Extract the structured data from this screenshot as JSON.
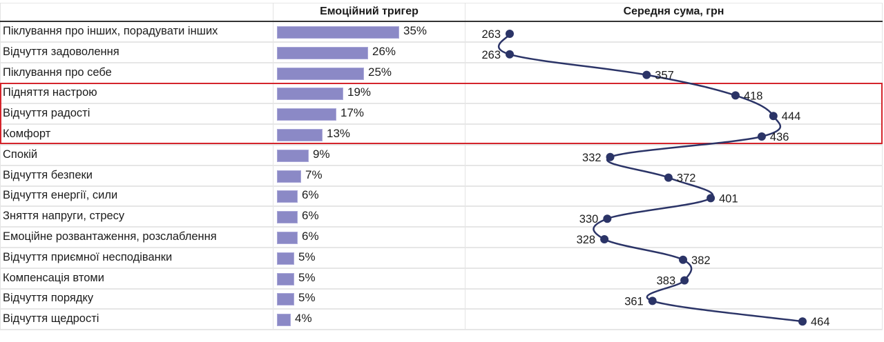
{
  "table": {
    "col_headers": [
      "",
      "Емоційний тригер",
      "Середня сума, грн"
    ],
    "rows": [
      {
        "label": "Піклування про інших, порадувати інших",
        "pct": 35,
        "pct_label": "35%",
        "avg": 263,
        "avg_label": "263"
      },
      {
        "label": "Відчуття задоволення",
        "pct": 26,
        "pct_label": "26%",
        "avg": 263,
        "avg_label": "263"
      },
      {
        "label": "Піклування про себе",
        "pct": 25,
        "pct_label": "25%",
        "avg": 357,
        "avg_label": "357"
      },
      {
        "label": "Підняття настрою",
        "pct": 19,
        "pct_label": "19%",
        "avg": 418,
        "avg_label": "418"
      },
      {
        "label": "Відчуття радості",
        "pct": 17,
        "pct_label": "17%",
        "avg": 444,
        "avg_label": "444"
      },
      {
        "label": "Комфорт",
        "pct": 13,
        "pct_label": "13%",
        "avg": 436,
        "avg_label": "436"
      },
      {
        "label": "Спокій",
        "pct": 9,
        "pct_label": "9%",
        "avg": 332,
        "avg_label": "332"
      },
      {
        "label": "Відчуття безпеки",
        "pct": 7,
        "pct_label": "7%",
        "avg": 372,
        "avg_label": "372"
      },
      {
        "label": "Відчуття енергії, сили",
        "pct": 6,
        "pct_label": "6%",
        "avg": 401,
        "avg_label": "401"
      },
      {
        "label": "Зняття напруги, стресу",
        "pct": 6,
        "pct_label": "6%",
        "avg": 330,
        "avg_label": "330"
      },
      {
        "label": "Емоційне розвантаження, розслаблення",
        "pct": 6,
        "pct_label": "6%",
        "avg": 328,
        "avg_label": "328"
      },
      {
        "label": "Відчуття приємної несподіванки",
        "pct": 5,
        "pct_label": "5%",
        "avg": 382,
        "avg_label": "382"
      },
      {
        "label": "Компенсація втоми",
        "pct": 5,
        "pct_label": "5%",
        "avg": 383,
        "avg_label": "383"
      },
      {
        "label": "Відчуття порядку",
        "pct": 5,
        "pct_label": "5%",
        "avg": 361,
        "avg_label": "361"
      },
      {
        "label": "Відчуття щедрості",
        "pct": 4,
        "pct_label": "4%",
        "avg": 464,
        "avg_label": "464"
      }
    ],
    "highlighted_rows": [
      "Підняття настрою",
      "Відчуття радості",
      "Комфорт"
    ]
  },
  "colors": {
    "bar": "#8b89c6",
    "line": "#2b3467",
    "highlight_border": "#d4242b",
    "header_rule": "#333333",
    "grid": "#e6e6e6"
  },
  "chart_data": [
    {
      "type": "bar",
      "title": "Емоційний тригер",
      "orientation": "horizontal",
      "categories": [
        "Піклування про інших, порадувати інших",
        "Відчуття задоволення",
        "Піклування про себе",
        "Підняття настрою",
        "Відчуття радості",
        "Комфорт",
        "Спокій",
        "Відчуття безпеки",
        "Відчуття енергії, сили",
        "Зняття напруги, стресу",
        "Емоційне розвантаження, розслаблення",
        "Відчуття приємної несподіванки",
        "Компенсація втоми",
        "Відчуття порядку",
        "Відчуття щедрості"
      ],
      "values": [
        35,
        26,
        25,
        19,
        17,
        13,
        9,
        7,
        6,
        6,
        6,
        5,
        5,
        5,
        4
      ],
      "unit": "%",
      "xlabel": "",
      "ylabel": "",
      "grid": true
    },
    {
      "type": "line",
      "title": "Середня сума, грн",
      "orientation": "vertical-dot-line",
      "categories": [
        "Піклування про інших, порадувати інших",
        "Відчуття задоволення",
        "Піклування про себе",
        "Підняття настрою",
        "Відчуття радості",
        "Комфорт",
        "Спокій",
        "Відчуття безпеки",
        "Відчуття енергії, сили",
        "Зняття напруги, стресу",
        "Емоційне розвантаження, розслаблення",
        "Відчуття приємної несподіванки",
        "Компенсація втоми",
        "Відчуття порядку",
        "Відчуття щедрості"
      ],
      "values": [
        263,
        263,
        357,
        418,
        444,
        436,
        332,
        372,
        401,
        330,
        328,
        382,
        383,
        361,
        464
      ],
      "unit": "грн",
      "xlabel": "",
      "ylabel": "",
      "grid": true
    }
  ]
}
